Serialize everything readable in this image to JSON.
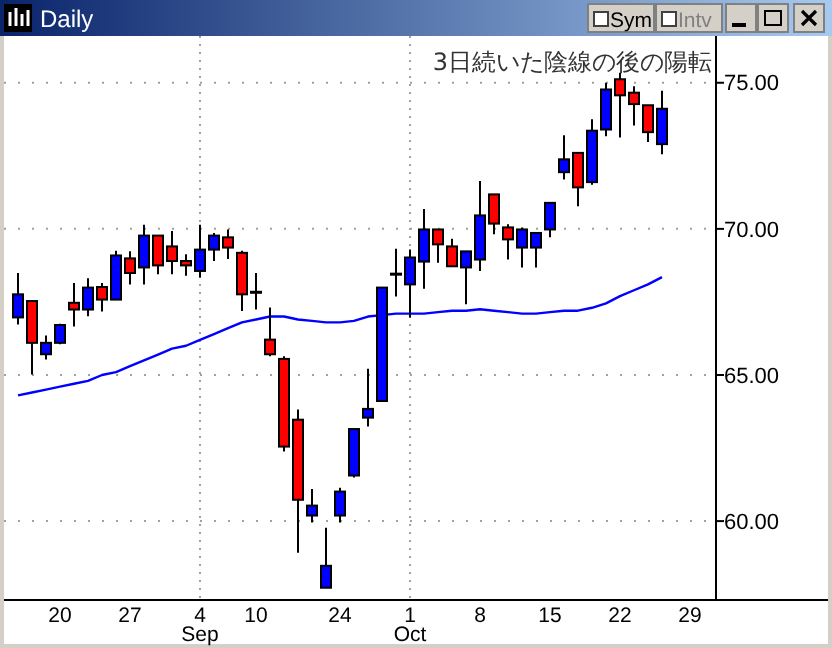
{
  "chart_data": {
    "type": "candlestick",
    "title": "Daily",
    "annotations": [
      "3日続いた陰線の後の陽転",
      "Sym",
      "Intv"
    ],
    "categories": [
      null,
      null,
      null,
      "20",
      null,
      null,
      null,
      null,
      "27",
      null,
      null,
      null,
      null,
      "4 Sep",
      null,
      null,
      null,
      "10",
      null,
      null,
      null,
      null,
      null,
      "24",
      null,
      null,
      null,
      null,
      "1 Oct",
      null,
      null,
      null,
      null,
      "8",
      null,
      null,
      null,
      null,
      "15",
      null,
      null,
      null,
      null,
      "22",
      null,
      null,
      null,
      null,
      "29"
    ],
    "ylim": [
      57.3,
      76.6
    ],
    "yticks": [
      {
        "value": 60,
        "label": "60.00"
      },
      {
        "value": 65,
        "label": "65.00"
      },
      {
        "value": 70,
        "label": "70.00"
      },
      {
        "value": 75,
        "label": "75.00"
      }
    ],
    "grid": true,
    "series": [
      {
        "ohlc": [
          [
            66.97,
            68.49,
            66.73,
            67.76
          ],
          [
            67.53,
            67.53,
            65.02,
            66.1
          ],
          [
            65.71,
            66.35,
            65.53,
            66.1
          ],
          [
            66.1,
            66.75,
            66.05,
            66.71
          ],
          [
            67.47,
            68.15,
            66.66,
            67.24
          ],
          [
            67.24,
            68.31,
            67.01,
            67.99
          ],
          [
            68.01,
            68.15,
            67.17,
            67.58
          ],
          [
            67.58,
            69.25,
            67.58,
            69.09
          ],
          [
            68.99,
            69.23,
            68.1,
            68.49
          ],
          [
            68.68,
            70.14,
            68.1,
            69.77
          ],
          [
            69.77,
            69.77,
            68.45,
            68.75
          ],
          [
            69.4,
            69.93,
            68.45,
            68.9
          ],
          [
            68.9,
            69.13,
            68.4,
            68.75
          ],
          [
            68.56,
            70.14,
            68.34,
            69.29
          ],
          [
            69.29,
            69.86,
            68.9,
            69.77
          ],
          [
            69.71,
            69.98,
            68.97,
            69.36
          ],
          [
            69.18,
            69.25,
            67.19,
            67.76
          ],
          [
            67.83,
            68.49,
            67.24,
            67.83
          ],
          [
            66.21,
            67.31,
            65.64,
            65.71
          ],
          [
            65.55,
            65.64,
            62.38,
            62.55
          ],
          [
            63.47,
            63.82,
            58.92,
            60.73
          ],
          [
            60.19,
            61.1,
            59.95,
            60.53
          ],
          [
            57.72,
            59.77,
            57.72,
            58.47
          ],
          [
            60.19,
            61.14,
            59.95,
            61.01
          ],
          [
            61.56,
            63.15,
            61.49,
            63.15
          ],
          [
            63.54,
            65.21,
            63.24,
            63.84
          ],
          [
            64.11,
            67.99,
            64.11,
            67.99
          ],
          [
            68.45,
            69.32,
            67.69,
            68.45
          ],
          [
            68.1,
            69.29,
            66.97,
            69.02
          ],
          [
            68.88,
            70.68,
            67.95,
            69.98
          ],
          [
            69.98,
            69.98,
            68.84,
            69.47
          ],
          [
            69.4,
            69.66,
            68.72,
            68.72
          ],
          [
            68.68,
            69.23,
            67.42,
            69.23
          ],
          [
            68.95,
            71.64,
            68.56,
            70.46
          ],
          [
            71.18,
            71.18,
            69.82,
            70.18
          ],
          [
            70.05,
            70.16,
            68.95,
            69.64
          ],
          [
            69.36,
            70.05,
            68.68,
            69.98
          ],
          [
            69.36,
            69.86,
            68.68,
            69.86
          ],
          [
            69.98,
            70.89,
            69.71,
            70.89
          ],
          [
            71.94,
            73.2,
            71.69,
            72.38
          ],
          [
            72.6,
            72.6,
            70.77,
            71.42
          ],
          [
            71.6,
            73.75,
            71.51,
            73.36
          ],
          [
            73.4,
            75.0,
            73.17,
            74.77
          ],
          [
            75.12,
            75.34,
            73.13,
            74.57
          ],
          [
            74.66,
            74.88,
            73.54,
            74.27
          ],
          [
            74.23,
            74.23,
            72.97,
            73.31
          ],
          [
            72.9,
            74.73,
            72.55,
            74.11
          ],
          null,
          null
        ],
        "colors": [
          "#0000ff",
          "#ff0000",
          "#0000ff",
          "#0000ff",
          "#ff0000",
          "#0000ff",
          "#ff0000",
          "#0000ff",
          "#ff0000",
          "#0000ff",
          "#ff0000",
          "#ff0000",
          "#ff0000",
          "#0000ff",
          "#0000ff",
          "#ff0000",
          "#ff0000",
          "#000000",
          "#ff0000",
          "#ff0000",
          "#ff0000",
          "#0000ff",
          "#0000ff",
          "#0000ff",
          "#0000ff",
          "#0000ff",
          "#0000ff",
          "#000000",
          "#0000ff",
          "#0000ff",
          "#ff0000",
          "#ff0000",
          "#0000ff",
          "#0000ff",
          "#ff0000",
          "#ff0000",
          "#0000ff",
          "#0000ff",
          "#0000ff",
          "#0000ff",
          "#ff0000",
          "#0000ff",
          "#0000ff",
          "#ff0000",
          "#ff0000",
          "#ff0000",
          "#0000ff",
          null,
          null
        ]
      },
      {
        "type": "line",
        "color": "#0000ff",
        "values": [
          64.3,
          64.4,
          64.5,
          64.6,
          64.7,
          64.8,
          65.0,
          65.1,
          65.3,
          65.5,
          65.7,
          65.9,
          66.0,
          66.2,
          66.4,
          66.6,
          66.8,
          66.9,
          67.0,
          67.0,
          66.9,
          66.85,
          66.8,
          66.8,
          66.85,
          67.0,
          67.05,
          67.1,
          67.1,
          67.1,
          67.15,
          67.2,
          67.2,
          67.25,
          67.2,
          67.15,
          67.1,
          67.1,
          67.15,
          67.2,
          67.2,
          67.3,
          67.45,
          67.7,
          67.9,
          68.1,
          68.35,
          null,
          null
        ]
      }
    ]
  }
}
